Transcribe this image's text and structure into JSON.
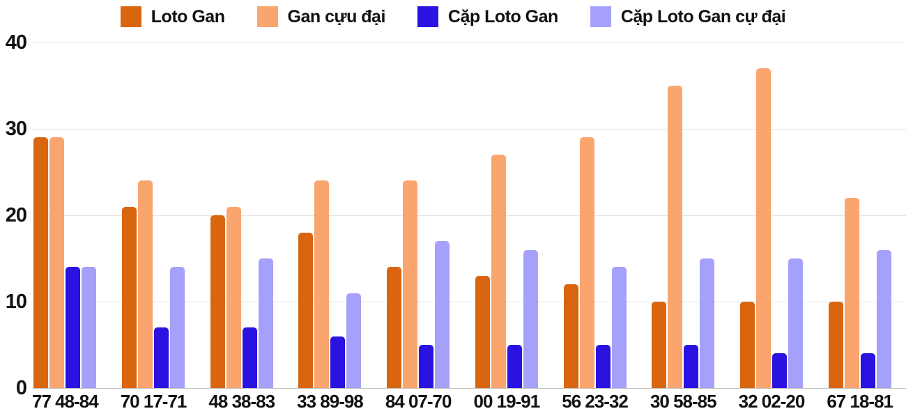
{
  "chart_data": {
    "type": "bar",
    "title": "",
    "xlabel": "",
    "ylabel": "",
    "categories": [
      "77 48-84",
      "70 17-71",
      "48 38-83",
      "33 89-98",
      "84 07-70",
      "00 19-91",
      "56 23-32",
      "30 58-85",
      "32 02-20",
      "67 18-81"
    ],
    "series": [
      {
        "name": "Loto Gan",
        "color": "#d9650f",
        "values": [
          29,
          21,
          20,
          18,
          14,
          13,
          12,
          10,
          10,
          10
        ]
      },
      {
        "name": "Gan cựu đại",
        "color": "#fba56e",
        "values": [
          29,
          24,
          21,
          24,
          24,
          27,
          29,
          35,
          37,
          22
        ]
      },
      {
        "name": "Cặp Loto Gan",
        "color": "#2a12e0",
        "values": [
          14,
          7,
          7,
          6,
          5,
          5,
          5,
          5,
          4,
          4
        ]
      },
      {
        "name": "Cặp Loto Gan cự đại",
        "color": "#a5a0fa",
        "values": [
          14,
          14,
          15,
          11,
          17,
          16,
          14,
          15,
          15,
          16
        ]
      }
    ],
    "ylim": [
      0,
      40
    ],
    "yticks": [
      0,
      10,
      20,
      30,
      40
    ],
    "grid": true,
    "legend_position": "top",
    "colors": {
      "gridline": "#e5e5e5",
      "axis_baseline": "#c4c4c4",
      "text": "#111111",
      "background": "#ffffff"
    }
  }
}
